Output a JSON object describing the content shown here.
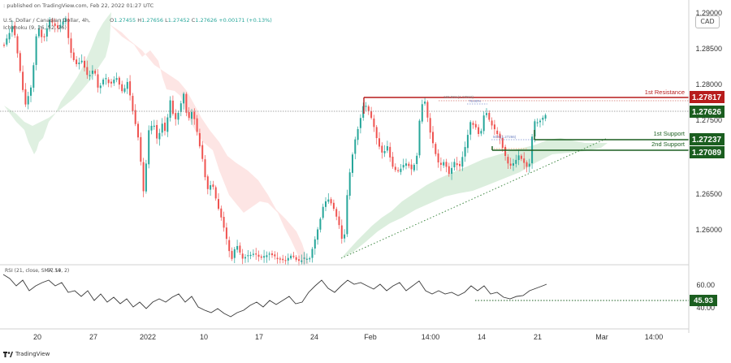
{
  "header": {
    "published": ": published on TradingView.com, Feb 22, 2022 01:27 UTC",
    "symbol": "U.S. Dollar / Canadian Dollar, 4h,",
    "o_label": "O",
    "o": "1.27455",
    "h_label": "H",
    "h": "1.27656",
    "l_label": "L",
    "l": "1.27452",
    "c_label": "C",
    "c": "1.27626",
    "change": "+0.00171 (+0.13%)",
    "indicator": "Ichimoku (9, 26, 52, 26)"
  },
  "currency_button": "CAD",
  "price_axis": {
    "labels": [
      "1.29000",
      "1.28500",
      "1.28000",
      "1.27500",
      "1.26500",
      "1.26000"
    ]
  },
  "levels": {
    "resistance": {
      "label": "1st Resistance",
      "price": "1.27817",
      "color": "#b71c1c"
    },
    "current": {
      "price": "1.27626",
      "color": "#1b5e20"
    },
    "support1": {
      "label": "1st Support",
      "price": "1.27237",
      "color": "#1b5e20"
    },
    "support2": {
      "label": "2nd Support",
      "price": "1.27089",
      "color": "#1b5e20"
    }
  },
  "fib": {
    "top": "100.00%(1.27819)",
    "sub": "78.60%",
    "mid": "50%(1.27266)"
  },
  "rsi": {
    "header": "RSI (21, close, SMA, 14, 2)",
    "value": "57.59",
    "labels": [
      "60.00",
      "40.00"
    ],
    "level": "45.93",
    "level_color": "#1b5e20"
  },
  "time_axis": {
    "labels": [
      "20",
      "27",
      "2022",
      "10",
      "17",
      "24",
      "Feb",
      "14:00",
      "14",
      "21",
      "Mar",
      "14:00"
    ]
  },
  "footer": "TradingView",
  "colors": {
    "bull": "#26a69a",
    "bear": "#ef5350",
    "green_cloud": "#c8e6c9",
    "red_cloud": "#ffcdd2",
    "resistance": "#b71c1c",
    "support": "#1b5e20"
  }
}
